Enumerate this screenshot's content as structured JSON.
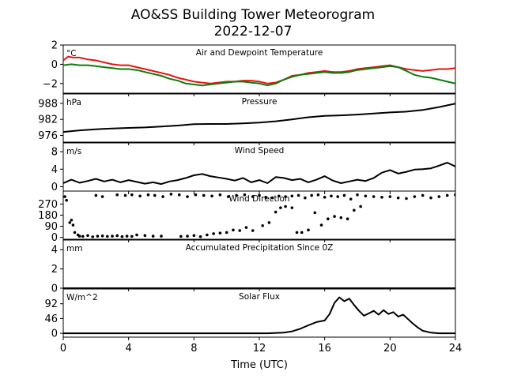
{
  "figure": {
    "title_line1": "AO&SS Building Tower Meteorogram",
    "title_line2": "2022-12-07",
    "xlabel": "Time (UTC)"
  },
  "chart_data": [
    {
      "id": "temp",
      "type": "line",
      "title": "Air and Dewpoint Temperature",
      "unit": "°C",
      "ylim": [
        -3,
        2
      ],
      "yticks": [
        "2",
        "0",
        "−2"
      ],
      "ytick_values": [
        2,
        0,
        -2
      ],
      "xlim": [
        0,
        24
      ],
      "series": [
        {
          "color": "#e8150e",
          "x": [
            0.0,
            0.3,
            0.6,
            1.0,
            1.5,
            2.0,
            2.5,
            3.0,
            3.5,
            4.0,
            4.5,
            5.0,
            5.5,
            6.0,
            6.5,
            7.0,
            7.5,
            8.0,
            8.5,
            9.0,
            9.5,
            10.0,
            10.5,
            11.0,
            11.5,
            12.0,
            12.5,
            13.0,
            13.5,
            14.0,
            14.5,
            15.0,
            15.5,
            16.0,
            16.5,
            17.0,
            17.5,
            18.0,
            18.5,
            19.0,
            19.5,
            20.0,
            20.5,
            21.0,
            21.5,
            22.0,
            22.5,
            23.0,
            23.5,
            24.0
          ],
          "y": [
            0.4,
            0.8,
            0.7,
            0.7,
            0.5,
            0.4,
            0.2,
            0.0,
            -0.1,
            -0.1,
            -0.3,
            -0.5,
            -0.7,
            -0.9,
            -1.1,
            -1.4,
            -1.6,
            -1.8,
            -1.9,
            -2.0,
            -1.9,
            -1.8,
            -1.8,
            -1.7,
            -1.7,
            -1.8,
            -2.0,
            -1.9,
            -1.6,
            -1.2,
            -1.1,
            -0.9,
            -0.8,
            -0.7,
            -0.8,
            -0.8,
            -0.7,
            -0.5,
            -0.4,
            -0.3,
            -0.2,
            -0.1,
            -0.3,
            -0.5,
            -0.6,
            -0.7,
            -0.6,
            -0.5,
            -0.5,
            -0.4
          ]
        },
        {
          "color": "#0b7d0b",
          "x": [
            0.0,
            0.5,
            1.0,
            1.5,
            2.0,
            2.5,
            3.0,
            3.5,
            4.0,
            4.5,
            5.0,
            5.5,
            6.0,
            6.5,
            7.0,
            7.5,
            8.0,
            8.5,
            9.0,
            9.5,
            10.0,
            10.5,
            11.0,
            11.5,
            12.0,
            12.5,
            13.0,
            13.5,
            14.0,
            14.5,
            15.0,
            15.5,
            16.0,
            16.5,
            17.0,
            17.5,
            18.0,
            18.5,
            19.0,
            19.5,
            20.0,
            20.5,
            21.0,
            21.5,
            22.0,
            22.5,
            23.0,
            23.5,
            24.0
          ],
          "y": [
            -0.1,
            0.0,
            -0.1,
            -0.1,
            -0.2,
            -0.3,
            -0.4,
            -0.5,
            -0.5,
            -0.6,
            -0.8,
            -1.0,
            -1.2,
            -1.5,
            -1.7,
            -2.0,
            -2.1,
            -2.2,
            -2.1,
            -2.0,
            -1.9,
            -1.8,
            -1.8,
            -1.9,
            -2.0,
            -2.2,
            -2.0,
            -1.6,
            -1.3,
            -1.1,
            -1.0,
            -0.9,
            -0.8,
            -0.9,
            -0.9,
            -0.8,
            -0.6,
            -0.5,
            -0.4,
            -0.3,
            -0.2,
            -0.3,
            -0.7,
            -1.1,
            -1.3,
            -1.4,
            -1.6,
            -1.8,
            -2.0
          ]
        }
      ]
    },
    {
      "id": "pressure",
      "type": "line",
      "title": "Pressure",
      "unit": "hPa",
      "ylim": [
        973.5,
        991.5
      ],
      "yticks": [
        "988",
        "982",
        "976"
      ],
      "ytick_values": [
        988,
        982,
        976
      ],
      "xlim": [
        0,
        24
      ],
      "series": [
        {
          "color": "#000000",
          "x": [
            0,
            1,
            2,
            3,
            4,
            5,
            6,
            7,
            8,
            9,
            10,
            11,
            12,
            13,
            14,
            15,
            16,
            17,
            18,
            19,
            20,
            21,
            22,
            23,
            24
          ],
          "y": [
            977.3,
            977.9,
            978.3,
            978.6,
            978.8,
            979.0,
            979.3,
            979.7,
            980.2,
            980.3,
            980.3,
            980.5,
            980.8,
            981.3,
            982.0,
            982.8,
            983.3,
            983.5,
            983.8,
            984.2,
            984.6,
            984.9,
            985.5,
            986.6,
            987.9
          ]
        }
      ]
    },
    {
      "id": "wind_speed",
      "type": "line",
      "title": "Wind Speed",
      "unit": "m/s",
      "ylim": [
        -1,
        10
      ],
      "yticks": [
        "8",
        "4",
        "0"
      ],
      "ytick_values": [
        8,
        4,
        0
      ],
      "xlim": [
        0,
        24
      ],
      "series": [
        {
          "color": "#000000",
          "x": [
            0,
            0.5,
            1,
            1.5,
            2,
            2.5,
            3,
            3.5,
            4,
            4.5,
            5,
            5.5,
            6,
            6.5,
            7,
            7.5,
            8,
            8.5,
            9,
            9.5,
            10,
            10.5,
            11,
            11.5,
            12,
            12.5,
            13,
            13.5,
            14,
            14.5,
            15,
            15.5,
            16,
            16.5,
            17,
            17.5,
            18,
            18.5,
            19,
            19.5,
            20,
            20.5,
            21,
            21.5,
            22,
            22.5,
            23,
            23.5,
            24
          ],
          "y": [
            0.8,
            1.6,
            0.9,
            1.3,
            1.8,
            1.2,
            1.6,
            1.0,
            1.5,
            1.1,
            0.7,
            1.0,
            0.6,
            1.2,
            1.5,
            2.0,
            2.6,
            2.9,
            2.4,
            2.1,
            1.8,
            1.4,
            2.0,
            1.0,
            1.5,
            0.8,
            2.2,
            2.0,
            1.5,
            1.8,
            1.0,
            1.6,
            2.4,
            1.4,
            0.8,
            1.2,
            1.6,
            1.3,
            2.0,
            3.2,
            3.8,
            3.0,
            3.4,
            3.9,
            4.0,
            4.2,
            4.8,
            5.5,
            4.6
          ]
        }
      ]
    },
    {
      "id": "wind_direction",
      "type": "scatter",
      "title": "Wind Direction",
      "unit": "",
      "ylim": [
        -15,
        375
      ],
      "yticks": [
        "270",
        "180",
        "90",
        "0"
      ],
      "ytick_values": [
        270,
        180,
        90,
        0
      ],
      "xlim": [
        0,
        24
      ],
      "series": [
        {
          "color": "#000000",
          "x": [
            0.1,
            0.2,
            0.4,
            0.5,
            0.6,
            0.7,
            0.9,
            1.0,
            1.2,
            1.5,
            1.8,
            2.1,
            2.4,
            2.7,
            3.0,
            3.3,
            3.6,
            3.9,
            4.2,
            4.5,
            5.0,
            5.5,
            6.0,
            2.0,
            2.4,
            3.3,
            3.8,
            4.2,
            4.7,
            5.2,
            5.6,
            6.1,
            6.6,
            7.1,
            7.6,
            8.1,
            8.6,
            9.1,
            9.6,
            10.1,
            10.6,
            11.1,
            11.6,
            12.0,
            12.4,
            12.8,
            13.2,
            13.6,
            14.0,
            14.4,
            14.8,
            15.2,
            15.6,
            16.0,
            16.4,
            16.8,
            17.2,
            17.6,
            18.0,
            18.5,
            19.0,
            19.5,
            20.0,
            20.5,
            21.0,
            21.5,
            22.0,
            22.5,
            23.0,
            23.5,
            24.0,
            7.2,
            7.6,
            8.0,
            8.4,
            8.8,
            9.2,
            9.6,
            10.0,
            10.4,
            10.8,
            11.2,
            11.6,
            12.2,
            12.6,
            13.0,
            13.3,
            13.6,
            14.0,
            14.3,
            14.6,
            15.0,
            15.4,
            15.8,
            16.2,
            16.6,
            17.0,
            17.4,
            17.8,
            18.2
          ],
          "y": [
            330,
            300,
            120,
            140,
            100,
            40,
            20,
            10,
            8,
            15,
            5,
            10,
            12,
            8,
            10,
            14,
            6,
            10,
            8,
            20,
            15,
            10,
            10,
            340,
            330,
            345,
            340,
            345,
            335,
            345,
            340,
            330,
            350,
            345,
            330,
            345,
            340,
            335,
            345,
            330,
            340,
            345,
            330,
            340,
            325,
            320,
            335,
            330,
            335,
            340,
            320,
            340,
            345,
            325,
            335,
            330,
            340,
            310,
            345,
            335,
            330,
            325,
            330,
            320,
            315,
            330,
            340,
            320,
            330,
            340,
            345,
            8,
            10,
            15,
            6,
            20,
            30,
            35,
            40,
            60,
            55,
            80,
            55,
            95,
            120,
            205,
            240,
            250,
            240,
            40,
            40,
            60,
            200,
            100,
            150,
            170,
            160,
            150,
            220,
            250
          ]
        }
      ]
    },
    {
      "id": "precip",
      "type": "line",
      "title": "Accumulated Precipitation Since 0Z",
      "unit": "mm",
      "ylim": [
        0,
        5
      ],
      "yticks": [
        "4",
        "2",
        "0"
      ],
      "ytick_values": [
        4,
        2,
        0
      ],
      "xlim": [
        0,
        24
      ],
      "series": [
        {
          "color": "#000000",
          "x": [
            0,
            24
          ],
          "y": [
            0,
            0
          ]
        }
      ]
    },
    {
      "id": "solar",
      "type": "line",
      "title": "Solar Flux",
      "unit": "W/m^2",
      "ylim": [
        -12,
        138
      ],
      "yticks": [
        "92",
        "46",
        "0"
      ],
      "ytick_values": [
        92,
        46,
        0
      ],
      "xlim": [
        0,
        24
      ],
      "series": [
        {
          "color": "#000000",
          "x": [
            0,
            12.5,
            13.5,
            14.0,
            14.5,
            15.0,
            15.5,
            16.0,
            16.3,
            16.6,
            16.9,
            17.2,
            17.5,
            17.8,
            18.1,
            18.4,
            18.7,
            19.0,
            19.3,
            19.6,
            19.9,
            20.2,
            20.5,
            20.8,
            21.1,
            21.4,
            21.7,
            22.0,
            22.5,
            23.0,
            24
          ],
          "y": [
            0,
            0,
            2,
            6,
            14,
            25,
            35,
            40,
            60,
            95,
            112,
            100,
            108,
            88,
            70,
            55,
            62,
            70,
            58,
            72,
            60,
            66,
            52,
            58,
            44,
            30,
            18,
            8,
            2,
            0,
            0
          ]
        }
      ]
    }
  ],
  "xaxis": {
    "ticks": [
      "0",
      "4",
      "8",
      "12",
      "16",
      "20",
      "24"
    ],
    "tick_values": [
      0,
      4,
      8,
      12,
      16,
      20,
      24
    ]
  }
}
